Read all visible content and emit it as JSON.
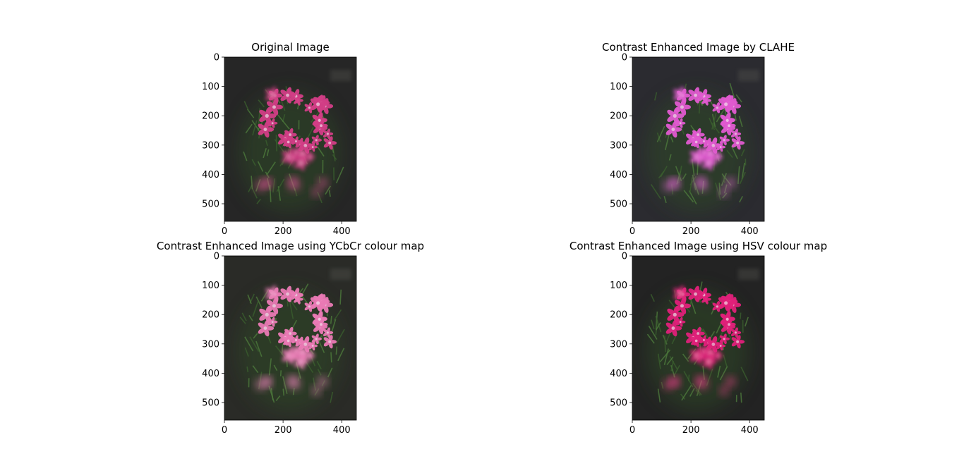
{
  "figure": {
    "background": "#ffffff"
  },
  "panels": [
    {
      "title": "Original Image",
      "image_style": "original",
      "flower_color": "#d23e86",
      "bg_color": "#262626"
    },
    {
      "title": "Contrast Enhanced Image by CLAHE",
      "image_style": "clahe",
      "flower_color": "#e15ad0",
      "bg_color": "#2b2b30"
    },
    {
      "title": "Contrast Enhanced Image using YCbCr colour map",
      "image_style": "ycbcr",
      "flower_color": "#ea7ab5",
      "bg_color": "#2a2b27"
    },
    {
      "title": "Contrast Enhanced Image using HSV colour map",
      "image_style": "hsv",
      "flower_color": "#e0207a",
      "bg_color": "#232323"
    }
  ],
  "chart_data": [
    {
      "type": "image",
      "title": "Original Image",
      "xlim": [
        0,
        450
      ],
      "ylim": [
        560,
        0
      ],
      "xticks": [
        0,
        200,
        400
      ],
      "yticks": [
        0,
        100,
        200,
        300,
        400,
        500
      ]
    },
    {
      "type": "image",
      "title": "Contrast Enhanced Image by CLAHE",
      "xlim": [
        0,
        450
      ],
      "ylim": [
        560,
        0
      ],
      "xticks": [
        0,
        200,
        400
      ],
      "yticks": [
        0,
        100,
        200,
        300,
        400,
        500
      ]
    },
    {
      "type": "image",
      "title": "Contrast Enhanced Image using YCbCr colour map",
      "xlim": [
        0,
        450
      ],
      "ylim": [
        560,
        0
      ],
      "xticks": [
        0,
        200,
        400
      ],
      "yticks": [
        0,
        100,
        200,
        300,
        400,
        500
      ]
    },
    {
      "type": "image",
      "title": "Contrast Enhanced Image using HSV colour map",
      "xlim": [
        0,
        450
      ],
      "ylim": [
        560,
        0
      ],
      "xticks": [
        0,
        200,
        400
      ],
      "yticks": [
        0,
        100,
        200,
        300,
        400,
        500
      ]
    }
  ]
}
